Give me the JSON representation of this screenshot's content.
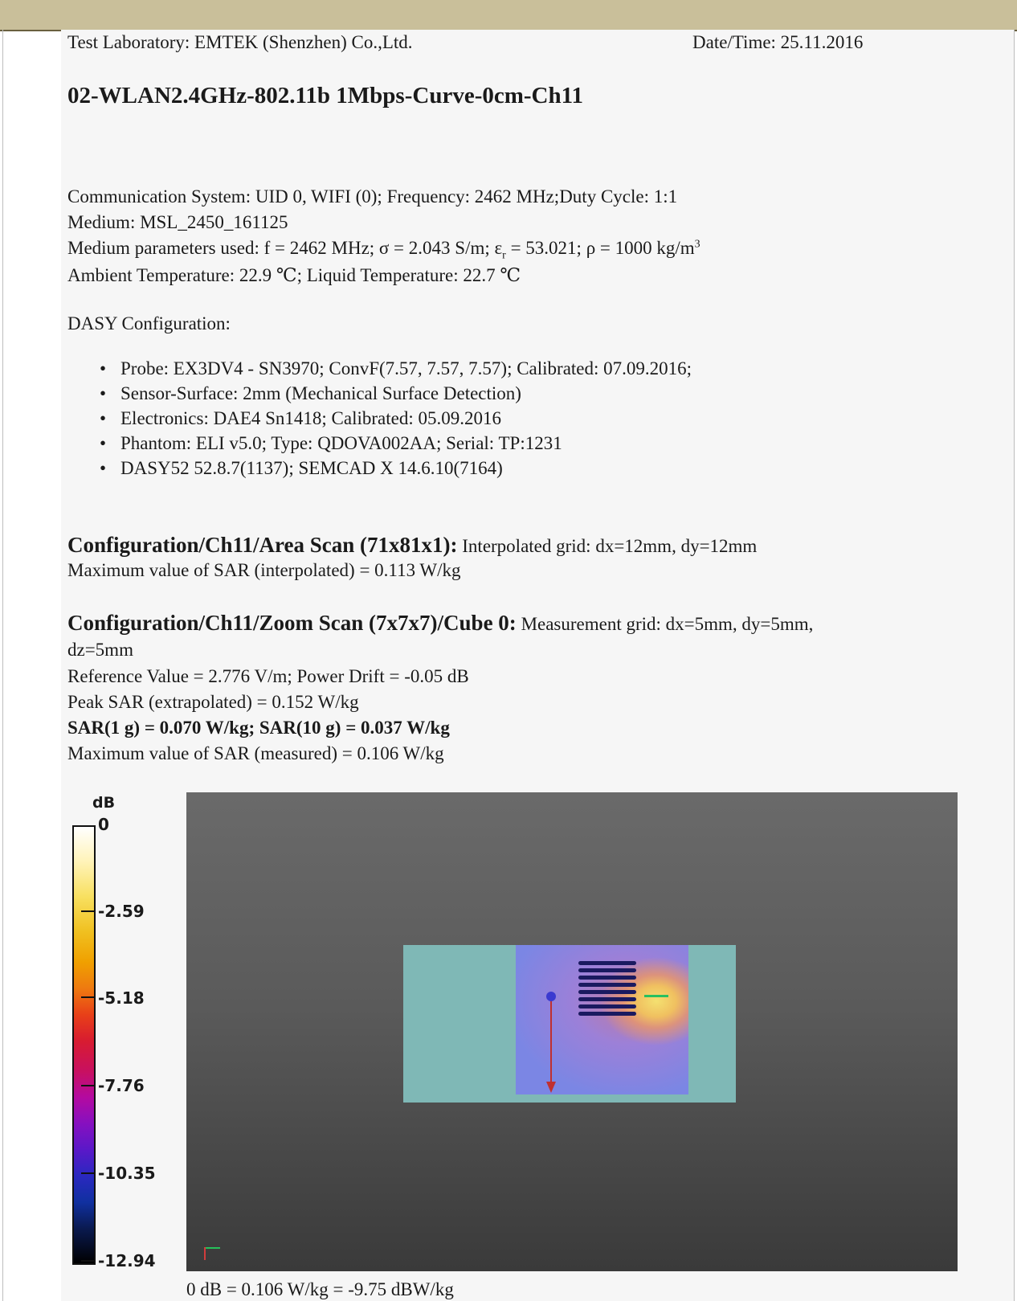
{
  "header": {
    "lab": "Test Laboratory: EMTEK (Shenzhen) Co.,Ltd.",
    "date": "Date/Time: 25.11.2016"
  },
  "title": "02-WLAN2.4GHz-802.11b 1Mbps-Curve-0cm-Ch11",
  "info": {
    "comm": "Communication System: UID 0, WIFI (0); Frequency: 2462 MHz;Duty Cycle: 1:1",
    "medium": "Medium: MSL_2450_161125",
    "params_a": "Medium parameters used: f = 2462 MHz; σ = 2.043 S/m; ε",
    "params_sub": "r",
    "params_b": " = 53.021; ρ = 1000 kg/m",
    "params_sup": "3",
    "temp": "Ambient Temperature: 22.9 ℃; Liquid Temperature: 22.7 ℃"
  },
  "dasy": {
    "heading": "DASY Configuration:",
    "items": [
      "Probe: EX3DV4 - SN3970; ConvF(7.57, 7.57, 7.57); Calibrated: 07.09.2016;",
      "Sensor-Surface: 2mm (Mechanical Surface Detection)",
      "Electronics: DAE4 Sn1418; Calibrated: 05.09.2016",
      "Phantom: ELI v5.0; Type: QDOVA002AA; Serial: TP:1231",
      "DASY52 52.8.7(1137); SEMCAD X 14.6.10(7164)"
    ],
    "bullet": "•"
  },
  "area_scan": {
    "heading": "Configuration/Ch11/Area Scan (71x81x1):",
    "grid": " Interpolated grid: dx=12mm, dy=12mm",
    "max": "Maximum value of SAR (interpolated) = 0.113 W/kg"
  },
  "zoom_scan": {
    "heading": "Configuration/Ch11/Zoom Scan (7x7x7)/Cube 0:",
    "grid": " Measurement grid: dx=5mm, dy=5mm,",
    "grid2": "dz=5mm",
    "ref": "Reference Value = 2.776 V/m; Power Drift = -0.05 dB",
    "peak": "Peak SAR (extrapolated) = 0.152 W/kg",
    "sar": "SAR(1 g) = 0.070 W/kg; SAR(10 g) = 0.037 W/kg",
    "max": "Maximum value of SAR (measured) = 0.106 W/kg"
  },
  "colorbar": {
    "unit": "dB",
    "ticks": [
      "0",
      "-2.59",
      "-5.18",
      "-7.76",
      "-10.35",
      "-12.94"
    ],
    "min": -12.94,
    "max": 0
  },
  "footer": "0 dB = 0.106 W/kg = -9.75 dBW/kg"
}
